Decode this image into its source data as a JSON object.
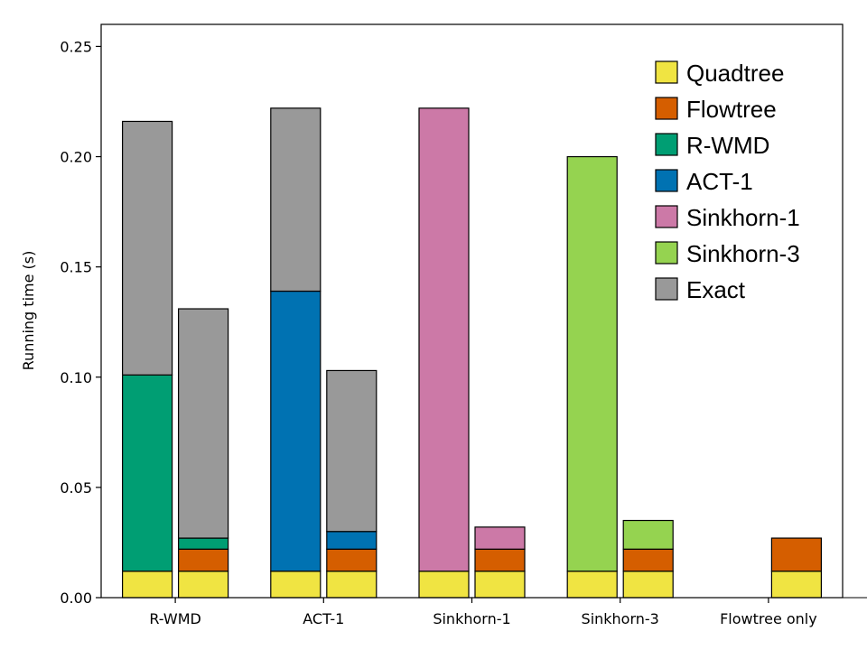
{
  "chart_data": {
    "type": "bar",
    "stacked": true,
    "title": "",
    "xlabel": "",
    "ylabel": "Running time (s)",
    "ylim": [
      0,
      0.26
    ],
    "yticks": [
      0.0,
      0.05,
      0.1,
      0.15,
      0.2,
      0.25
    ],
    "ytick_labels": [
      "0.00",
      "0.05",
      "0.10",
      "0.15",
      "0.20",
      "0.25"
    ],
    "categories": [
      "R-WMD",
      "ACT-1",
      "Sinkhorn-1",
      "Sinkhorn-3",
      "Flowtree only"
    ],
    "legend_position": "top-right",
    "legend": [
      {
        "name": "Quadtree",
        "color": "#f0e442"
      },
      {
        "name": "Flowtree",
        "color": "#d55e00"
      },
      {
        "name": "R-WMD",
        "color": "#009e73"
      },
      {
        "name": "ACT-1",
        "color": "#0072b2"
      },
      {
        "name": "Sinkhorn-1",
        "color": "#cc79a7"
      },
      {
        "name": "Sinkhorn-3",
        "color": "#95d350"
      },
      {
        "name": "Exact",
        "color": "#999999"
      }
    ],
    "bars": [
      {
        "category": "R-WMD",
        "position": "left",
        "segments": [
          {
            "series": "Quadtree",
            "value": 0.012
          },
          {
            "series": "R-WMD",
            "value": 0.089
          },
          {
            "series": "Exact",
            "value": 0.115
          }
        ]
      },
      {
        "category": "R-WMD",
        "position": "right",
        "segments": [
          {
            "series": "Quadtree",
            "value": 0.012
          },
          {
            "series": "Flowtree",
            "value": 0.01
          },
          {
            "series": "R-WMD",
            "value": 0.005
          },
          {
            "series": "Exact",
            "value": 0.104
          }
        ]
      },
      {
        "category": "ACT-1",
        "position": "left",
        "segments": [
          {
            "series": "Quadtree",
            "value": 0.012
          },
          {
            "series": "ACT-1",
            "value": 0.127
          },
          {
            "series": "Exact",
            "value": 0.083
          }
        ]
      },
      {
        "category": "ACT-1",
        "position": "right",
        "segments": [
          {
            "series": "Quadtree",
            "value": 0.012
          },
          {
            "series": "Flowtree",
            "value": 0.01
          },
          {
            "series": "ACT-1",
            "value": 0.008
          },
          {
            "series": "Exact",
            "value": 0.073
          }
        ]
      },
      {
        "category": "Sinkhorn-1",
        "position": "left",
        "segments": [
          {
            "series": "Quadtree",
            "value": 0.012
          },
          {
            "series": "Sinkhorn-1",
            "value": 0.21
          }
        ]
      },
      {
        "category": "Sinkhorn-1",
        "position": "right",
        "segments": [
          {
            "series": "Quadtree",
            "value": 0.012
          },
          {
            "series": "Flowtree",
            "value": 0.01
          },
          {
            "series": "Sinkhorn-1",
            "value": 0.01
          }
        ]
      },
      {
        "category": "Sinkhorn-3",
        "position": "left",
        "segments": [
          {
            "series": "Quadtree",
            "value": 0.012
          },
          {
            "series": "Sinkhorn-3",
            "value": 0.188
          }
        ]
      },
      {
        "category": "Sinkhorn-3",
        "position": "right",
        "segments": [
          {
            "series": "Quadtree",
            "value": 0.012
          },
          {
            "series": "Flowtree",
            "value": 0.01
          },
          {
            "series": "Sinkhorn-3",
            "value": 0.013
          }
        ]
      },
      {
        "category": "Flowtree only",
        "position": "left",
        "segments": []
      },
      {
        "category": "Flowtree only",
        "position": "center",
        "segments": [
          {
            "series": "Quadtree",
            "value": 0.012
          },
          {
            "series": "Flowtree",
            "value": 0.015
          }
        ]
      },
      {
        "category": "Flowtree only",
        "position": "right",
        "segments": []
      }
    ]
  }
}
